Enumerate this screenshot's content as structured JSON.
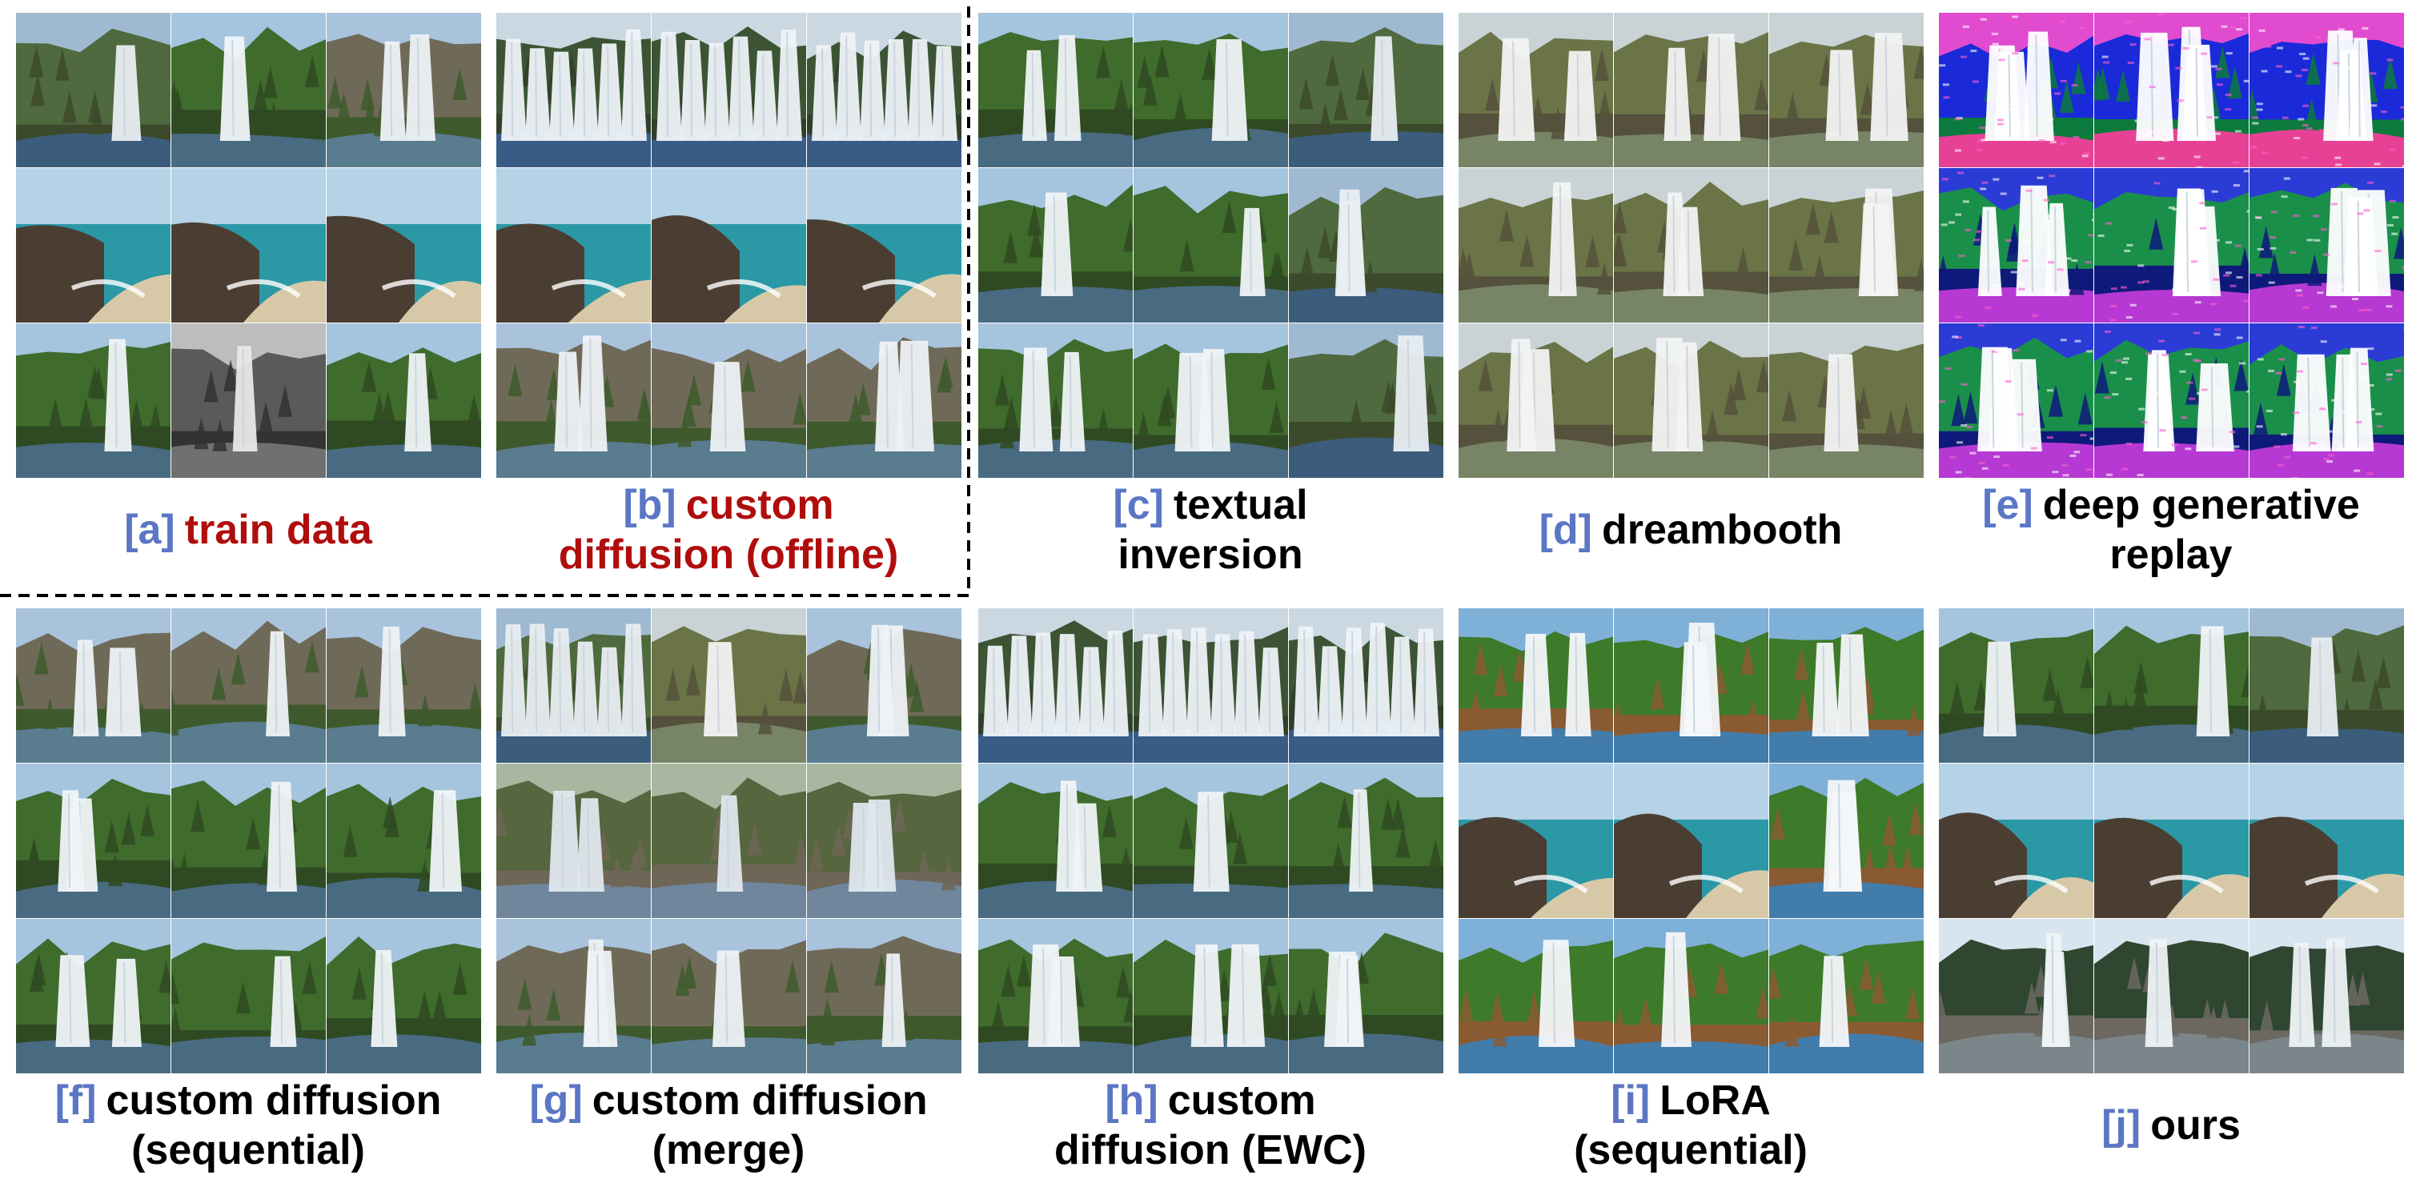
{
  "colors": {
    "tag": "#5b76c4",
    "highlight": "#b00d0d",
    "caption": "#000000",
    "divider": "#000000"
  },
  "figure": {
    "panels": [
      {
        "tag": "[a]",
        "lines": [
          "train data"
        ],
        "highlighted": true,
        "tiles": [
          "waterfall-blue-pool",
          "waterfall-green-trees",
          "waterfall-forest-cliff",
          "beach-cove-sea",
          "beach-cove-cliff",
          "beach-cove-blue-sea",
          "tall-waterfall-forest",
          "waterfall-grayscale",
          "tall-waterfall-green"
        ]
      },
      {
        "tag": "[b]",
        "lines": [
          "custom",
          "diffusion (offline)"
        ],
        "highlighted": true,
        "tiles": [
          "waterfall-wide-curtain",
          "waterfall-wide-curtain",
          "waterfall-wide-curtain",
          "coastal-rocks-beach",
          "coastal-rocks-beach",
          "coastal-cliff-sea",
          "canyon-waterfall",
          "canyon-waterfall-steep",
          "canyon-waterfall-river"
        ]
      },
      {
        "tag": "[c]",
        "lines": [
          "textual",
          "inversion"
        ],
        "highlighted": false,
        "tiles": [
          "waterfall-mossy",
          "waterfall-forest-narrow",
          "waterfall-blue-sky",
          "waterfall-mossy",
          "waterfall-forest-narrow",
          "waterfall-blue-sky",
          "waterfall-mossy",
          "waterfall-forest-narrow",
          "waterfall-blue-sky"
        ]
      },
      {
        "tag": "[d]",
        "lines": [
          "dreambooth"
        ],
        "highlighted": false,
        "tiles": [
          "waterfall-rocky-green",
          "waterfall-rocky-green",
          "waterfall-rocky-pale",
          "waterfall-rocky-green",
          "waterfall-rocky-green",
          "waterfall-rocky-pale",
          "waterfall-rocky-green",
          "waterfall-rocky-green",
          "waterfall-rocky-pale"
        ]
      },
      {
        "tag": "[e]",
        "lines": [
          "deep generative",
          "replay"
        ],
        "highlighted": false,
        "tiles": [
          "noisy-psychedelic",
          "noisy-psychedelic",
          "noisy-psychedelic",
          "noisy-waterfall",
          "noisy-waterfall",
          "noisy-waterfall",
          "noisy-waterfall",
          "noisy-waterfall",
          "noisy-waterfall"
        ]
      },
      {
        "tag": "[f]",
        "lines": [
          "custom diffusion",
          "(sequential)"
        ],
        "highlighted": false,
        "tiles": [
          "waterfall-cliff-multi",
          "waterfall-canyon-blue",
          "waterfall-cliff-blue",
          "waterfall-green-rocks",
          "waterfall-green-red",
          "waterfall-tree-strip",
          "waterfall-green-rocks",
          "waterfall-green-red",
          "waterfall-tree-strip"
        ]
      },
      {
        "tag": "[g]",
        "lines": [
          "custom diffusion",
          "(merge)"
        ],
        "highlighted": false,
        "tiles": [
          "waterfall-blue-pool-wide",
          "waterfall-rocky-ledge",
          "waterfall-canyon-light",
          "stream-rocks",
          "stream-boulders",
          "stream-boulders-light",
          "waterfall-canyon-thin",
          "waterfall-canyon-thin",
          "waterfall-canyon-thin"
        ]
      },
      {
        "tag": "[h]",
        "lines": [
          "custom",
          "diffusion (EWC)"
        ],
        "highlighted": false,
        "tiles": [
          "waterfall-wide-curtain",
          "waterfall-wide-curtain",
          "waterfall-curtain-red",
          "waterfall-mossy-smooth",
          "waterfall-green-jet",
          "waterfall-green-slope",
          "waterfall-mossy-smooth",
          "waterfall-green-jet",
          "waterfall-green-slope"
        ]
      },
      {
        "tag": "[i]",
        "lines": [
          "LoRA",
          "(sequential)"
        ],
        "highlighted": false,
        "tiles": [
          "waterfall-painted",
          "waterfall-painted-green",
          "waterfall-painted-blue",
          "beach-painted",
          "coast-painted",
          "hill-painted",
          "waterfall-painted",
          "waterfall-painted-green",
          "waterfall-painted-blue"
        ]
      },
      {
        "tag": "[j]",
        "lines": [
          "ours"
        ],
        "highlighted": false,
        "tiles": [
          "waterfall-forest-far",
          "waterfall-canopy",
          "waterfall-blue-pool",
          "coast-rocks-teal",
          "coast-cliff-teal",
          "coast-cove-teal",
          "waterfall-winter-rocks",
          "waterfall-winter-tall",
          "waterfall-winter-pines"
        ]
      }
    ]
  }
}
